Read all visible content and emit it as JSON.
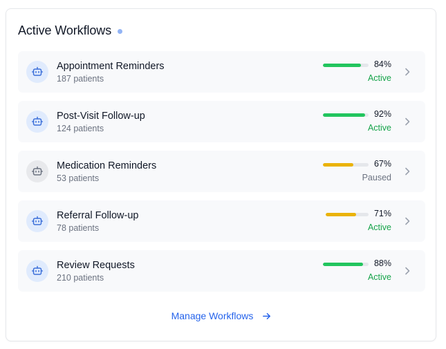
{
  "header": {
    "title": "Active Workflows"
  },
  "workflows": [
    {
      "name": "Appointment Reminders",
      "patients": "187 patients",
      "progress": 84,
      "percent_label": "84%",
      "status": "Active",
      "state": "active",
      "icon": "robot-icon"
    },
    {
      "name": "Post-Visit Follow-up",
      "patients": "124 patients",
      "progress": 92,
      "percent_label": "92%",
      "status": "Active",
      "state": "active",
      "icon": "robot-icon"
    },
    {
      "name": "Medication Reminders",
      "patients": "53 patients",
      "progress": 67,
      "percent_label": "67%",
      "status": "Paused",
      "state": "paused",
      "icon": "robot-icon"
    },
    {
      "name": "Referral Follow-up",
      "patients": "78 patients",
      "progress": 71,
      "percent_label": "71%",
      "status": "Active",
      "state": "active-amber",
      "icon": "robot-icon"
    },
    {
      "name": "Review Requests",
      "patients": "210 patients",
      "progress": 88,
      "percent_label": "88%",
      "status": "Active",
      "state": "active",
      "icon": "robot-icon"
    }
  ],
  "footer": {
    "link_label": "Manage Workflows",
    "icon": "arrow-right-icon"
  },
  "colors": {
    "accent": "#2563eb",
    "active": "#22c55e",
    "paused": "#eab308",
    "active_text": "#16a34a"
  }
}
